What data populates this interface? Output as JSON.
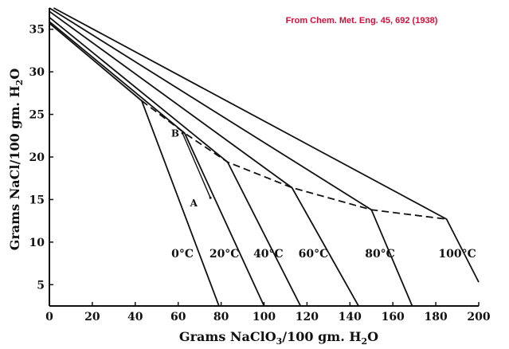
{
  "chart_data": {
    "type": "line",
    "source_note": "From Chem. Met. Eng. 45, 692 (1938)",
    "xlabel_main": "Grams NaClO",
    "xlabel_sub": "3",
    "xlabel_tail": "/100 gm. H",
    "xlabel_sub2": "2",
    "xlabel_end": "O",
    "ylabel_main": "Grams NaCl/100 gm. H",
    "ylabel_sub": "2",
    "ylabel_end": "O",
    "xlim": [
      0,
      200
    ],
    "ylim": [
      2.5,
      37.5
    ],
    "x_ticks": [
      0,
      20,
      40,
      60,
      80,
      100,
      120,
      140,
      160,
      180,
      200
    ],
    "y_ticks": [
      5,
      10,
      15,
      20,
      25,
      30,
      35
    ],
    "x_tick_labels": [
      "0",
      "20",
      "40",
      "60",
      "80",
      "100",
      "120",
      "140",
      "160",
      "180",
      "200"
    ],
    "y_tick_labels": [
      "5",
      "10",
      "15",
      "20",
      "25",
      "30",
      "35"
    ],
    "grid": false,
    "series": [
      {
        "name": "0°C",
        "points": [
          [
            0,
            35.7
          ],
          [
            43,
            26.6
          ],
          [
            79,
            2.5
          ]
        ]
      },
      {
        "name": "20°C",
        "points": [
          [
            0,
            35.9
          ],
          [
            63,
            22.8
          ],
          [
            100,
            2.5
          ]
        ]
      },
      {
        "name": "40°C",
        "points": [
          [
            0,
            36.4
          ],
          [
            83,
            19.4
          ],
          [
            117,
            2.5
          ]
        ]
      },
      {
        "name": "60°C",
        "points": [
          [
            0,
            37.1
          ],
          [
            113,
            16.4
          ],
          [
            144,
            2.5
          ]
        ]
      },
      {
        "name": "80°C",
        "points": [
          [
            0,
            37.5
          ],
          [
            150,
            13.8
          ],
          [
            169,
            2.5
          ]
        ]
      },
      {
        "name": "100°C",
        "points": [
          [
            2,
            37.5
          ],
          [
            185,
            12.7
          ],
          [
            200,
            5.3
          ]
        ]
      }
    ],
    "saturation_curve": [
      [
        43,
        26.6
      ],
      [
        63,
        22.8
      ],
      [
        83,
        19.4
      ],
      [
        113,
        16.4
      ],
      [
        150,
        13.8
      ],
      [
        185,
        12.7
      ]
    ],
    "points": [
      {
        "label": "A",
        "x": 75,
        "y": 15.2,
        "label_x": 69,
        "label_y": 14.2
      },
      {
        "label": "B",
        "x": 62,
        "y": 22.8,
        "label_x": 60.5,
        "label_y": 22.4
      }
    ],
    "temperature_labels": [
      {
        "text": "0°C",
        "x": 62,
        "y": 8.2
      },
      {
        "text": "20°C",
        "x": 81.5,
        "y": 8.2
      },
      {
        "text": "40°C",
        "x": 102,
        "y": 8.2
      },
      {
        "text": "60°C",
        "x": 123,
        "y": 8.2
      },
      {
        "text": "80°C",
        "x": 154,
        "y": 8.2
      },
      {
        "text": "100°C",
        "x": 190,
        "y": 8.2
      }
    ]
  }
}
